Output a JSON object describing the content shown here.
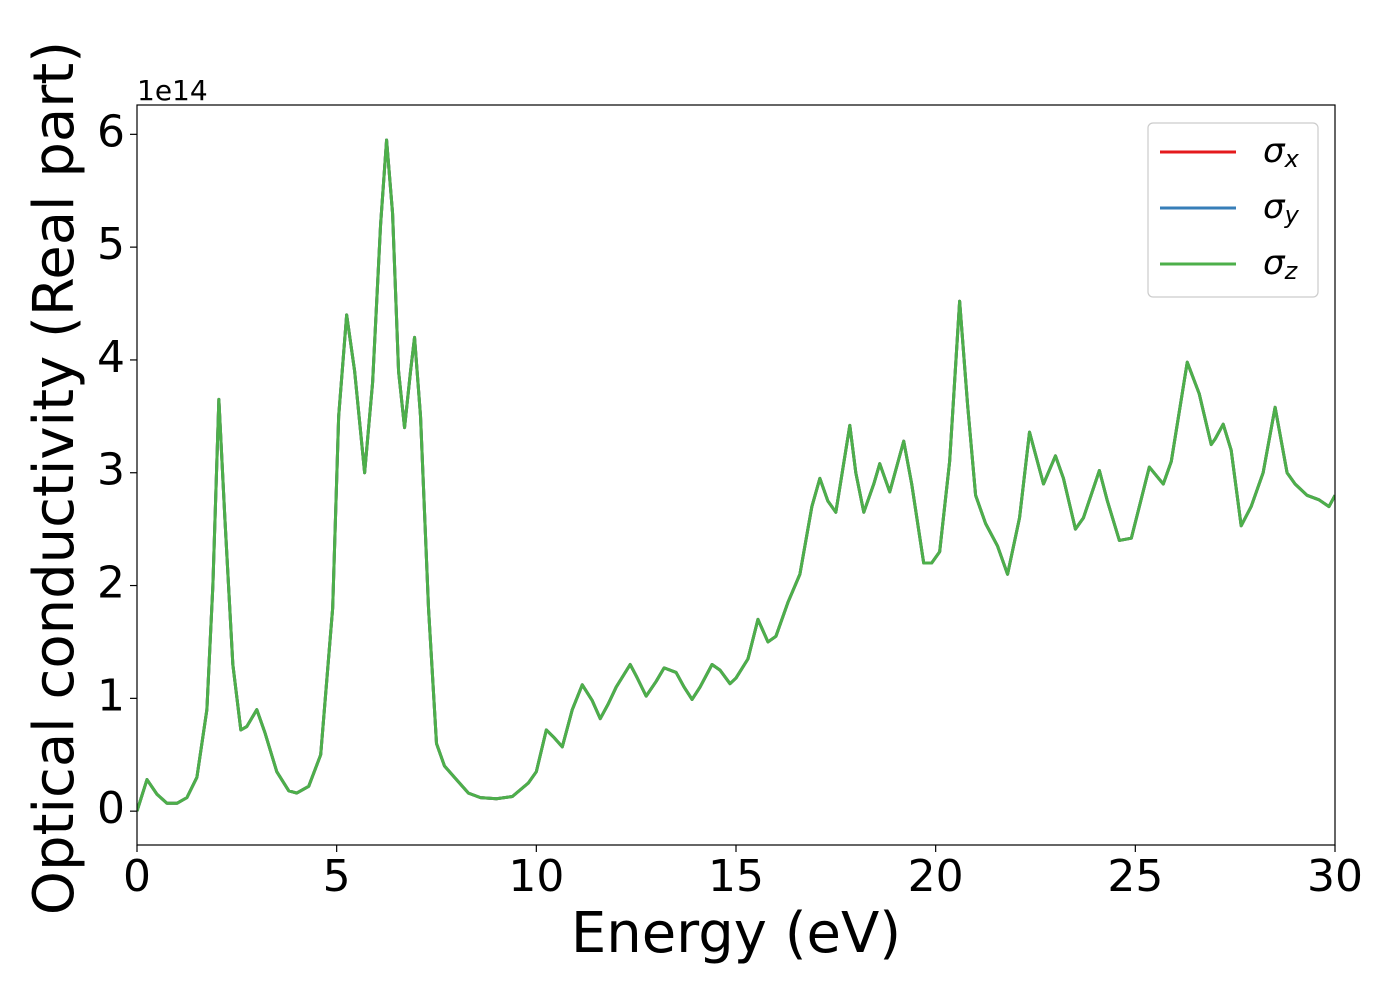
{
  "chart_data": {
    "type": "line",
    "xlabel": "Energy (eV)",
    "ylabel": "Optical conductivity (Real part)",
    "y_offset_label": "1e14",
    "xlim": [
      0,
      30
    ],
    "ylim": [
      -0.3,
      6.26
    ],
    "xticks": [
      0,
      5,
      10,
      15,
      20,
      25,
      30
    ],
    "yticks": [
      0,
      1,
      2,
      3,
      4,
      5,
      6
    ],
    "legend": "upper right",
    "x": [
      0,
      0.25,
      0.5,
      0.75,
      1.0,
      1.25,
      1.5,
      1.75,
      1.9,
      2.05,
      2.2,
      2.4,
      2.6,
      2.75,
      3.0,
      3.2,
      3.5,
      3.8,
      4.0,
      4.3,
      4.6,
      4.9,
      5.05,
      5.25,
      5.45,
      5.7,
      5.9,
      6.1,
      6.25,
      6.4,
      6.55,
      6.7,
      6.85,
      6.95,
      7.1,
      7.3,
      7.5,
      7.7,
      8.0,
      8.3,
      8.6,
      9.0,
      9.4,
      9.8,
      10.0,
      10.25,
      10.45,
      10.65,
      10.9,
      11.15,
      11.4,
      11.6,
      11.8,
      12.0,
      12.35,
      12.5,
      12.75,
      13.0,
      13.2,
      13.5,
      13.7,
      13.9,
      14.1,
      14.4,
      14.6,
      14.85,
      15.0,
      15.3,
      15.55,
      15.8,
      16.0,
      16.3,
      16.6,
      16.9,
      17.1,
      17.3,
      17.5,
      17.85,
      18.0,
      18.2,
      18.45,
      18.6,
      18.85,
      19.2,
      19.4,
      19.7,
      19.9,
      20.1,
      20.35,
      20.6,
      20.8,
      21.0,
      21.25,
      21.55,
      21.8,
      22.1,
      22.35,
      22.7,
      23.0,
      23.2,
      23.5,
      23.7,
      24.1,
      24.3,
      24.6,
      24.9,
      25.35,
      25.7,
      25.9,
      26.3,
      26.6,
      26.9,
      27.0,
      27.2,
      27.4,
      27.65,
      27.9,
      28.2,
      28.5,
      28.8,
      29.0,
      29.3,
      29.6,
      29.85,
      30.0
    ],
    "series": [
      {
        "name": "σx",
        "color": "#e41a1c",
        "values": [
          0,
          0.28,
          0.15,
          0.07,
          0.07,
          0.12,
          0.3,
          0.9,
          2.0,
          3.65,
          2.6,
          1.3,
          0.72,
          0.75,
          0.9,
          0.7,
          0.35,
          0.18,
          0.16,
          0.22,
          0.5,
          1.8,
          3.5,
          4.4,
          3.9,
          3.0,
          3.8,
          5.2,
          5.95,
          5.3,
          3.9,
          3.4,
          3.9,
          4.2,
          3.5,
          1.8,
          0.6,
          0.4,
          0.28,
          0.16,
          0.12,
          0.11,
          0.13,
          0.25,
          0.35,
          0.72,
          0.65,
          0.57,
          0.9,
          1.12,
          0.98,
          0.82,
          0.95,
          1.1,
          1.3,
          1.2,
          1.02,
          1.15,
          1.27,
          1.23,
          1.1,
          0.99,
          1.1,
          1.3,
          1.25,
          1.13,
          1.18,
          1.35,
          1.7,
          1.5,
          1.55,
          1.85,
          2.1,
          2.7,
          2.95,
          2.75,
          2.65,
          3.42,
          3.0,
          2.65,
          2.9,
          3.08,
          2.83,
          3.28,
          2.9,
          2.2,
          2.2,
          2.3,
          3.1,
          4.52,
          3.6,
          2.8,
          2.55,
          2.35,
          2.1,
          2.6,
          3.36,
          2.9,
          3.15,
          2.95,
          2.5,
          2.6,
          3.02,
          2.75,
          2.4,
          2.42,
          3.05,
          2.9,
          3.1,
          3.98,
          3.7,
          3.25,
          3.3,
          3.43,
          3.2,
          2.53,
          2.7,
          3.0,
          3.58,
          3.0,
          2.9,
          2.8,
          2.76,
          2.7,
          2.8
        ]
      },
      {
        "name": "σy",
        "color": "#377eb8",
        "values": [
          0,
          0.28,
          0.15,
          0.07,
          0.07,
          0.12,
          0.3,
          0.9,
          2.0,
          3.65,
          2.6,
          1.3,
          0.72,
          0.75,
          0.9,
          0.7,
          0.35,
          0.18,
          0.16,
          0.22,
          0.5,
          1.8,
          3.5,
          4.4,
          3.9,
          3.0,
          3.8,
          5.2,
          5.95,
          5.3,
          3.9,
          3.4,
          3.9,
          4.2,
          3.5,
          1.8,
          0.6,
          0.4,
          0.28,
          0.16,
          0.12,
          0.11,
          0.13,
          0.25,
          0.35,
          0.72,
          0.65,
          0.57,
          0.9,
          1.12,
          0.98,
          0.82,
          0.95,
          1.1,
          1.3,
          1.2,
          1.02,
          1.15,
          1.27,
          1.23,
          1.1,
          0.99,
          1.1,
          1.3,
          1.25,
          1.13,
          1.18,
          1.35,
          1.7,
          1.5,
          1.55,
          1.85,
          2.1,
          2.7,
          2.95,
          2.75,
          2.65,
          3.42,
          3.0,
          2.65,
          2.9,
          3.08,
          2.83,
          3.28,
          2.9,
          2.2,
          2.2,
          2.3,
          3.1,
          4.52,
          3.6,
          2.8,
          2.55,
          2.35,
          2.1,
          2.6,
          3.36,
          2.9,
          3.15,
          2.95,
          2.5,
          2.6,
          3.02,
          2.75,
          2.4,
          2.42,
          3.05,
          2.9,
          3.1,
          3.98,
          3.7,
          3.25,
          3.3,
          3.43,
          3.2,
          2.53,
          2.7,
          3.0,
          3.58,
          3.0,
          2.9,
          2.8,
          2.76,
          2.7,
          2.8
        ]
      },
      {
        "name": "σz",
        "color": "#4daf4a",
        "values": [
          0,
          0.28,
          0.15,
          0.07,
          0.07,
          0.12,
          0.3,
          0.9,
          2.0,
          3.65,
          2.6,
          1.3,
          0.72,
          0.75,
          0.9,
          0.7,
          0.35,
          0.18,
          0.16,
          0.22,
          0.5,
          1.8,
          3.5,
          4.4,
          3.9,
          3.0,
          3.8,
          5.2,
          5.95,
          5.3,
          3.9,
          3.4,
          3.9,
          4.2,
          3.5,
          1.8,
          0.6,
          0.4,
          0.28,
          0.16,
          0.12,
          0.11,
          0.13,
          0.25,
          0.35,
          0.72,
          0.65,
          0.57,
          0.9,
          1.12,
          0.98,
          0.82,
          0.95,
          1.1,
          1.3,
          1.2,
          1.02,
          1.15,
          1.27,
          1.23,
          1.1,
          0.99,
          1.1,
          1.3,
          1.25,
          1.13,
          1.18,
          1.35,
          1.7,
          1.5,
          1.55,
          1.85,
          2.1,
          2.7,
          2.95,
          2.75,
          2.65,
          3.42,
          3.0,
          2.65,
          2.9,
          3.08,
          2.83,
          3.28,
          2.9,
          2.2,
          2.2,
          2.3,
          3.1,
          4.52,
          3.6,
          2.8,
          2.55,
          2.35,
          2.1,
          2.6,
          3.36,
          2.9,
          3.15,
          2.95,
          2.5,
          2.6,
          3.02,
          2.75,
          2.4,
          2.42,
          3.05,
          2.9,
          3.1,
          3.98,
          3.7,
          3.25,
          3.3,
          3.43,
          3.2,
          2.53,
          2.7,
          3.0,
          3.58,
          3.0,
          2.9,
          2.8,
          2.76,
          2.7,
          2.8
        ]
      }
    ]
  }
}
